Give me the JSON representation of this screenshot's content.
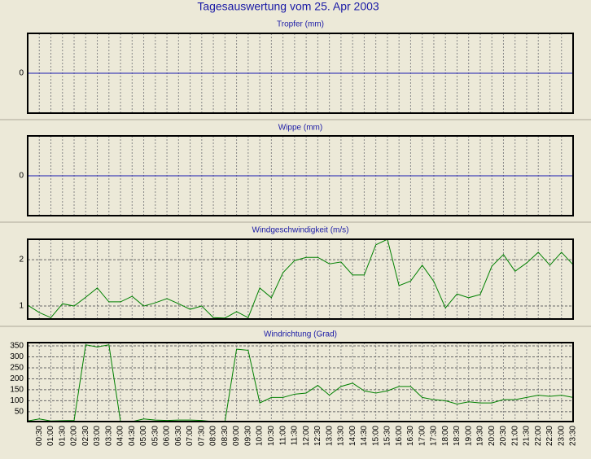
{
  "title": "Tagesauswertung vom 25. Apr 2003",
  "chart_data": [
    {
      "type": "line",
      "title": "Tropfer (mm)",
      "ylim": [
        -1,
        1
      ],
      "yticks": [
        0
      ],
      "baseline_color": "#1a1ab0",
      "grid": true
    },
    {
      "type": "line",
      "title": "Wippe (mm)",
      "ylim": [
        -1,
        1
      ],
      "yticks": [
        0
      ],
      "baseline_color": "#1a1ab0",
      "grid": true
    },
    {
      "type": "line",
      "title": "Windgeschwindigkeit (m/s)",
      "ylim": [
        0.72,
        2.44
      ],
      "yticks": [
        1,
        2
      ],
      "grid": true,
      "series": [
        {
          "color": "#008000",
          "values": [
            1.02,
            0.86,
            0.75,
            1.05,
            1.0,
            1.19,
            1.39,
            1.09,
            1.09,
            1.21,
            1.0,
            1.07,
            1.16,
            1.05,
            0.93,
            1.0,
            0.75,
            0.74,
            0.88,
            0.75,
            1.39,
            1.18,
            1.72,
            1.98,
            2.05,
            2.05,
            1.91,
            1.95,
            1.67,
            1.67,
            2.32,
            2.44,
            1.44,
            1.54,
            1.88,
            1.53,
            0.96,
            1.26,
            1.18,
            1.25,
            1.86,
            2.11,
            1.75,
            1.93,
            2.16,
            1.88,
            2.16,
            1.89
          ]
        }
      ]
    },
    {
      "type": "line",
      "title": "Windrichtung (Grad)",
      "ylim": [
        5,
        365
      ],
      "yticks": [
        50,
        100,
        150,
        200,
        250,
        300,
        350
      ],
      "grid": true,
      "categories": [
        null,
        "00:30",
        "01:00",
        "01:30",
        "02:00",
        "02:30",
        "03:00",
        "03:30",
        "04:00",
        "04:30",
        "05:00",
        "05:30",
        "06:00",
        "06:30",
        "07:00",
        "07:30",
        "08:00",
        "08:30",
        "09:00",
        "09:30",
        "10:00",
        "10:30",
        "11:00",
        "11:30",
        "12:00",
        "12:30",
        "13:00",
        "13:30",
        "14:00",
        "14:30",
        "15:00",
        "15:30",
        "16:00",
        "16:30",
        "17:00",
        "17:30",
        "18:00",
        "18:30",
        "19:00",
        "19:30",
        "20:00",
        "20:30",
        "21:00",
        "21:30",
        "22:00",
        "22:30",
        "23:00",
        "23:30"
      ],
      "series": [
        {
          "color": "#008000",
          "values": [
            8,
            17,
            8,
            9,
            10,
            355,
            345,
            355,
            5,
            5,
            17,
            12,
            10,
            12,
            12,
            10,
            5,
            5,
            335,
            330,
            90,
            115,
            115,
            130,
            135,
            170,
            125,
            165,
            180,
            145,
            135,
            145,
            165,
            165,
            115,
            105,
            100,
            85,
            95,
            90,
            90,
            105,
            105,
            115,
            125,
            120,
            125,
            115
          ]
        }
      ]
    }
  ]
}
